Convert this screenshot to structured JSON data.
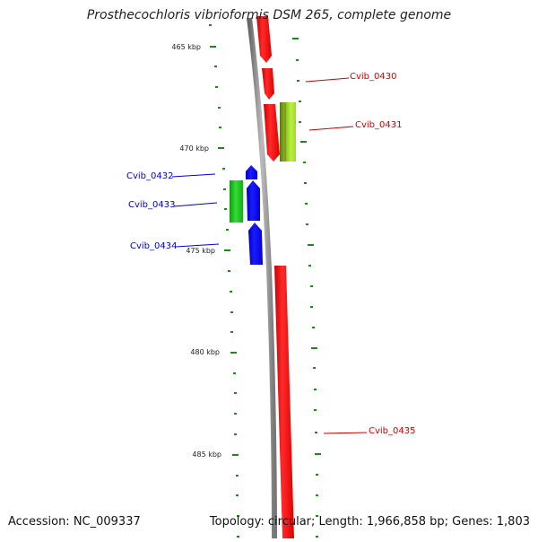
{
  "title": "Prosthecochloris vibrioformis DSM 265, complete genome",
  "footer": {
    "accession": "Accession: NC_009337",
    "stats": "Topology: circular; Length: 1,966,858 bp; Genes: 1,803"
  },
  "colors": {
    "forward_strand": "#ff0000",
    "reverse_strand": "#0000ff",
    "rna_green": "#22cc22",
    "rna_lime": "#99dd22",
    "ticks": "#1a8a1a",
    "backbone": "#8a8a8a"
  },
  "scale_ticks": [
    {
      "label": "465 kbp"
    },
    {
      "label": "470 kbp"
    },
    {
      "label": "475 kbp"
    },
    {
      "label": "480 kbp"
    },
    {
      "label": "485 kbp"
    }
  ],
  "gene_labels": [
    {
      "name": "Cvib_0430",
      "strand": "forward"
    },
    {
      "name": "Cvib_0431",
      "strand": "forward"
    },
    {
      "name": "Cvib_0432",
      "strand": "reverse"
    },
    {
      "name": "Cvib_0433",
      "strand": "reverse"
    },
    {
      "name": "Cvib_0434",
      "strand": "reverse"
    },
    {
      "name": "Cvib_0435",
      "strand": "forward"
    }
  ]
}
